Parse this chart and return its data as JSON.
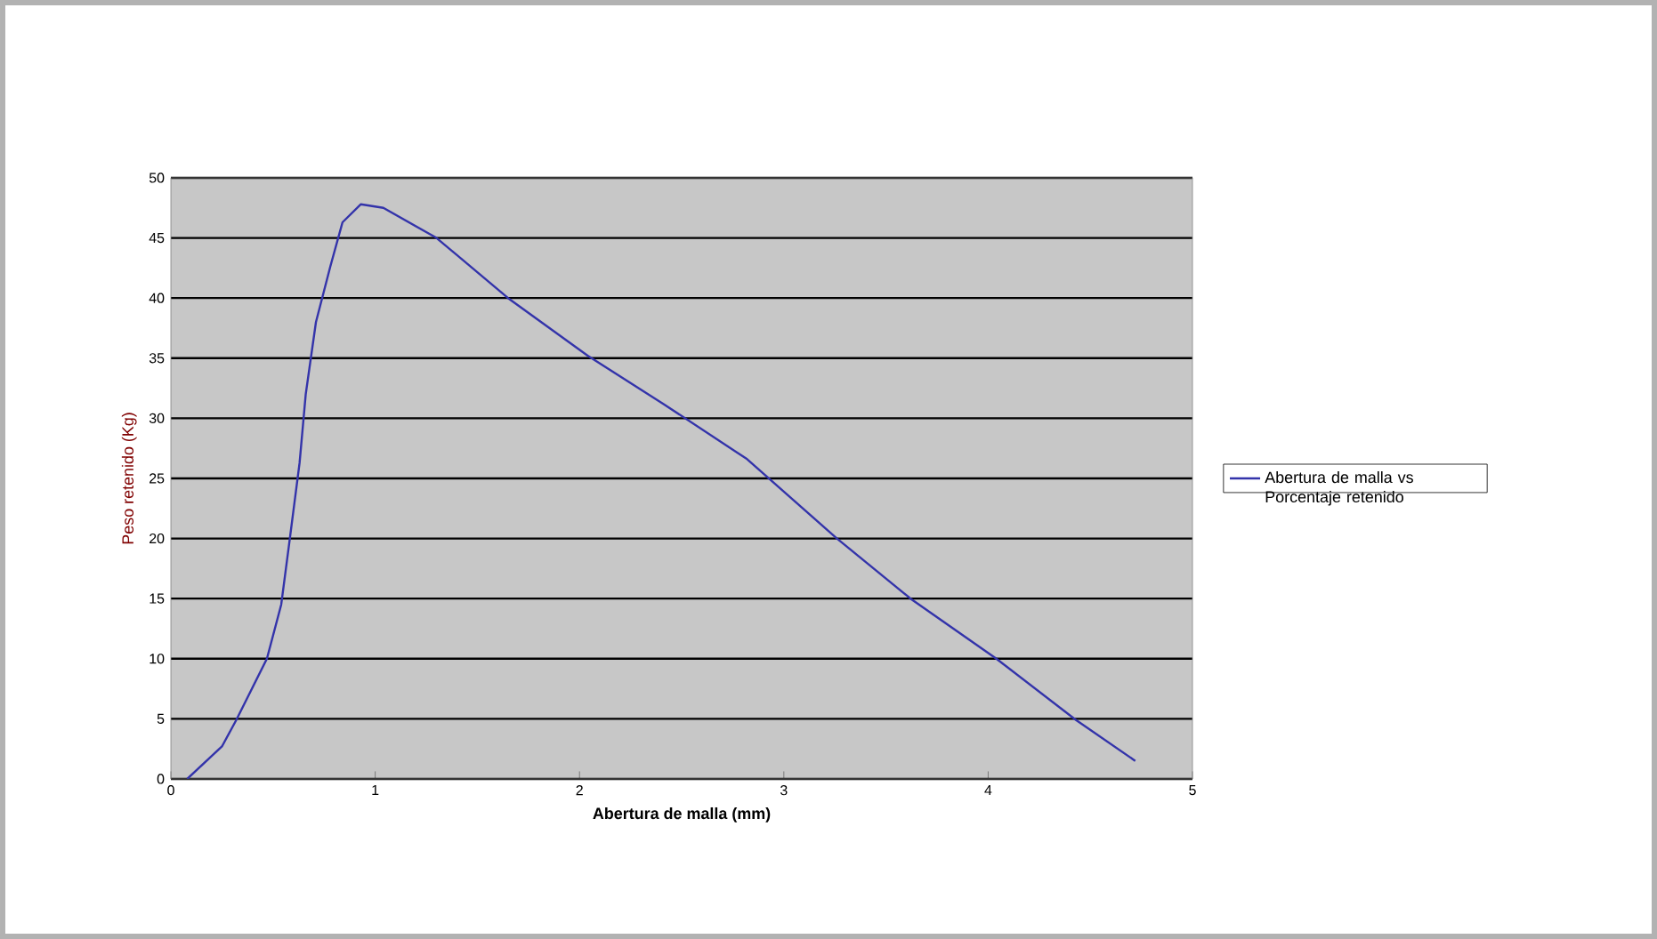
{
  "chart_data": {
    "type": "line",
    "xlabel": "Abertura de malla (mm)",
    "ylabel": "Peso retenido (Kg)",
    "xlim": [
      0,
      5
    ],
    "xticks": [
      0,
      1,
      2,
      3,
      4,
      5
    ],
    "ylim": [
      0,
      50
    ],
    "yticks": [
      0,
      5,
      10,
      15,
      20,
      25,
      30,
      35,
      40,
      45,
      50
    ],
    "grid": "y",
    "legend": "right",
    "marker": "none",
    "line_style": "solid",
    "series": [
      {
        "name": "Abertura de malla vs Porcentaje retenido",
        "color": "#3333aa",
        "x": [
          0.08,
          0.25,
          0.32,
          0.47,
          0.54,
          0.58,
          0.63,
          0.66,
          0.71,
          0.78,
          0.84,
          0.93,
          1.04,
          1.3,
          1.65,
          2.04,
          2.41,
          2.82,
          3.26,
          3.62,
          4.04,
          4.43,
          4.72
        ],
        "values": [
          0,
          2.7,
          4.9,
          10,
          14.5,
          19.7,
          26.3,
          32,
          38,
          42.6,
          46.3,
          47.8,
          47.5,
          45,
          40,
          35.2,
          31.2,
          26.6,
          20,
          15,
          10,
          4.9,
          1.5
        ]
      }
    ]
  }
}
